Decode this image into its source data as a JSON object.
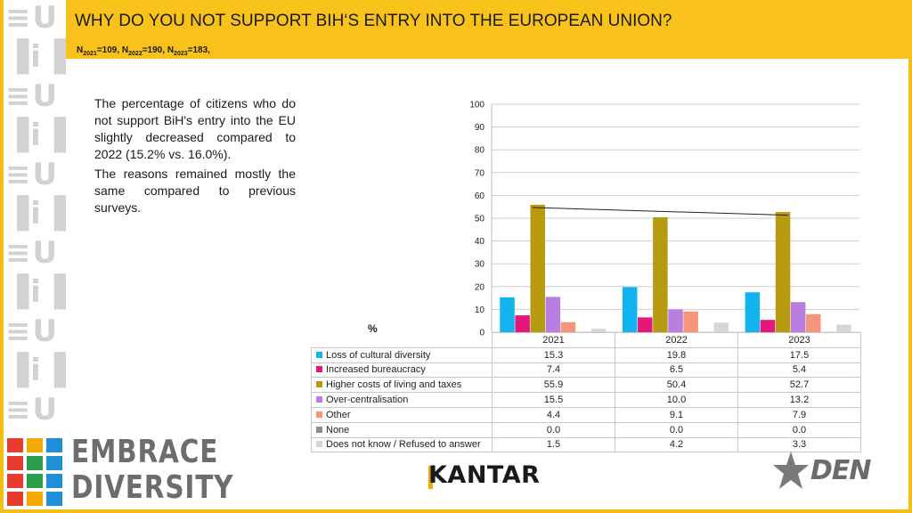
{
  "slide": {
    "title": "WHY DO YOU NOT SUPPORT BIH‘S ENTRY INTO THE EUROPEAN UNION?",
    "sample_parts": [
      {
        "n": "N",
        "sub": "2021",
        "value": "=109, "
      },
      {
        "n": "N",
        "sub": "2022",
        "value": "=190, "
      },
      {
        "n": "N",
        "sub": "2023",
        "value": "=183,"
      }
    ],
    "description": [
      "The percentage of citizens who do not support BiH's entry into the EU slightly decreased compared to 2022 (15.2% vs. 16.0%).",
      "The reasons remained mostly the same compared to previous surveys."
    ],
    "unit_label": "%"
  },
  "colors": {
    "accent": "#f9c21a",
    "frame": "#f5c016",
    "trendline": "#222222"
  },
  "chart_data": {
    "type": "bar",
    "categories": [
      "2021",
      "2022",
      "2023"
    ],
    "ylim": [
      0,
      100
    ],
    "yticks": [
      0,
      10,
      20,
      30,
      40,
      50,
      60,
      70,
      80,
      90,
      100
    ],
    "grid": true,
    "trendline_series": "Higher costs of living and taxes",
    "series": [
      {
        "name": "Loss of cultural diversity",
        "color": "#12b3ef",
        "values": [
          15.3,
          19.8,
          17.5
        ],
        "labels": [
          "15.3",
          "19.8",
          "17.5"
        ]
      },
      {
        "name": "Increased bureaucracy",
        "color": "#e5177b",
        "values": [
          7.4,
          6.5,
          5.4
        ],
        "labels": [
          "7.4",
          "6.5",
          "5.4"
        ]
      },
      {
        "name": "Higher costs of living and taxes",
        "color": "#b89a10",
        "values": [
          55.9,
          50.4,
          52.7
        ],
        "labels": [
          "55.9",
          "50.4",
          "52.7"
        ]
      },
      {
        "name": "Over-centralisation",
        "color": "#b87ee0",
        "values": [
          15.5,
          10.0,
          13.2
        ],
        "labels": [
          "15.5",
          "10.0",
          "13.2"
        ]
      },
      {
        "name": "Other",
        "color": "#f5957a",
        "values": [
          4.4,
          9.1,
          7.9
        ],
        "labels": [
          "4.4",
          "9.1",
          "7.9"
        ]
      },
      {
        "name": "None",
        "color": "#8c8c8c",
        "values": [
          0.0,
          0.0,
          0.0
        ],
        "labels": [
          "0.0",
          "0.0",
          "0.0"
        ]
      },
      {
        "name": "Does not know / Refused to answer",
        "color": "#d6d6d6",
        "values": [
          1.5,
          4.2,
          3.3
        ],
        "labels": [
          "1.5",
          "4.2",
          "3.3"
        ]
      }
    ]
  },
  "branding": {
    "project_line1": "EMBRACE",
    "project_line2": "DIVERSITY",
    "kantar": "KANTAR",
    "den": "DEN"
  }
}
